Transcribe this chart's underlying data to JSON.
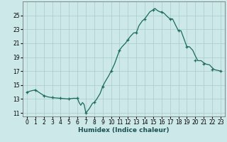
{
  "title": "",
  "xlabel": "Humidex (Indice chaleur)",
  "ylabel": "",
  "background_color": "#cce8e8",
  "grid_color": "#aacccc",
  "line_color": "#1a6b5a",
  "marker_color": "#1a6b5a",
  "x_values": [
    0,
    1,
    2,
    3,
    4,
    5,
    6,
    7,
    8,
    9,
    10,
    11,
    12,
    13,
    14,
    15,
    16,
    17,
    18,
    19,
    20,
    21,
    22,
    23
  ],
  "y_values": [
    14.0,
    14.3,
    13.5,
    13.2,
    13.1,
    13.0,
    13.1,
    11.0,
    12.5,
    14.8,
    17.0,
    20.0,
    21.5,
    22.5,
    24.5,
    25.8,
    25.5,
    24.5,
    22.8,
    20.5,
    18.5,
    18.0,
    17.2,
    17.0
  ],
  "y_detail_x": [
    0,
    0.3,
    0.6,
    1,
    1.5,
    2,
    2.5,
    3,
    3.5,
    4,
    4.5,
    5,
    5.2,
    5.5,
    5.8,
    6,
    6.2,
    6.4,
    6.6,
    6.8,
    7.0,
    7.2,
    7.4,
    7.6,
    7.8,
    8,
    8.3,
    8.7,
    9,
    9.3,
    9.7,
    10,
    10.4,
    10.7,
    11,
    11.3,
    11.7,
    12,
    12.3,
    12.7,
    13,
    13.3,
    13.7,
    14,
    14.3,
    14.6,
    15,
    15.2,
    15.5,
    15.8,
    16,
    16.3,
    16.7,
    17,
    17.3,
    17.7,
    18,
    18.3,
    18.7,
    19,
    19.3,
    19.7,
    20,
    20.3,
    20.7,
    21,
    21.3,
    21.7,
    22,
    22.3,
    22.7,
    23
  ],
  "y_detail_y": [
    14.0,
    14.1,
    14.2,
    14.3,
    13.9,
    13.5,
    13.3,
    13.2,
    13.15,
    13.1,
    13.05,
    13.0,
    13.05,
    13.1,
    13.1,
    13.1,
    12.5,
    12.1,
    12.5,
    12.2,
    11.0,
    11.3,
    11.6,
    12.0,
    12.4,
    12.5,
    13.0,
    13.8,
    14.8,
    15.5,
    16.3,
    17.0,
    18.0,
    19.0,
    20.0,
    20.5,
    21.0,
    21.5,
    22.0,
    22.5,
    22.5,
    23.5,
    24.2,
    24.5,
    25.0,
    25.5,
    25.8,
    26.0,
    25.7,
    25.5,
    25.5,
    25.3,
    24.8,
    24.5,
    24.5,
    23.5,
    22.8,
    22.8,
    21.5,
    20.5,
    20.5,
    20.0,
    19.2,
    18.5,
    18.5,
    18.2,
    18.0,
    17.9,
    17.5,
    17.2,
    17.1,
    17.0
  ],
  "ylim": [
    10.5,
    27.0
  ],
  "xlim": [
    -0.5,
    23.5
  ],
  "yticks": [
    11,
    13,
    15,
    17,
    19,
    21,
    23,
    25
  ],
  "xticks": [
    0,
    1,
    2,
    3,
    4,
    5,
    6,
    7,
    8,
    9,
    10,
    11,
    12,
    13,
    14,
    15,
    16,
    17,
    18,
    19,
    20,
    21,
    22,
    23
  ]
}
